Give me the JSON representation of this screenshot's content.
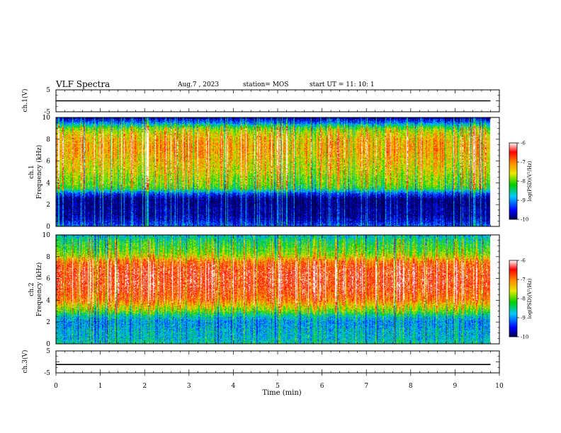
{
  "header": {
    "title": "VLF Spectra",
    "date": "Aug.7 , 2023",
    "station": "station= MOS",
    "start_ut": "start UT = 11: 10: 1"
  },
  "chart_data": [
    {
      "type": "line",
      "name": "ch1_voltage",
      "ylabel": "ch.1(V)",
      "yticks": [
        "5",
        "-5"
      ],
      "ylim": [
        -5,
        5
      ],
      "xlim": [
        0,
        10
      ],
      "trace_level": 0
    },
    {
      "type": "heatmap",
      "name": "ch1_spectrogram",
      "ylabel": "ch.1\nFrequency (kHz)",
      "ylabel_line1": "ch.1",
      "ylabel_line2": "Frequency (kHz)",
      "yticks": [
        "0",
        "2",
        "4",
        "6",
        "8",
        "10"
      ],
      "ylim": [
        0,
        10
      ],
      "xlim": [
        0,
        10
      ],
      "data_end_min": 9.8,
      "colorbar": {
        "label": "log(PSD)(V²/Hz)",
        "ticks": [
          "-6",
          "-7",
          "-8",
          "-9",
          "-10"
        ],
        "range": [
          -10,
          -6
        ]
      },
      "profile_khz": [
        0,
        0.5,
        1,
        1.5,
        2,
        2.5,
        3,
        3.5,
        4,
        4.5,
        5,
        5.5,
        6,
        6.5,
        7,
        7.5,
        8,
        8.5,
        9,
        9.5,
        10
      ],
      "profile_logpsd": [
        -9.2,
        -9.6,
        -9.8,
        -9.8,
        -9.9,
        -9.9,
        -9.3,
        -8.2,
        -7.9,
        -7.8,
        -7.6,
        -7.5,
        -7.4,
        -7.3,
        -7.2,
        -7.2,
        -7.3,
        -7.5,
        -7.9,
        -9.0,
        -9.8
      ]
    },
    {
      "type": "heatmap",
      "name": "ch2_spectrogram",
      "ylabel": "ch.2\nFrequency (kHz)",
      "ylabel_line1": "ch.2",
      "ylabel_line2": "Frequency (kHz)",
      "yticks": [
        "0",
        "2",
        "4",
        "6",
        "8",
        "10"
      ],
      "ylim": [
        0,
        10
      ],
      "xlim": [
        0,
        10
      ],
      "data_end_min": 9.8,
      "colorbar": {
        "label": "log(PSD)(V²/Hz)",
        "ticks": [
          "-6",
          "-7",
          "-8",
          "-9",
          "-10"
        ],
        "range": [
          -10,
          -6
        ]
      },
      "profile_khz": [
        0,
        0.5,
        1,
        1.5,
        2,
        2.5,
        3,
        3.5,
        4,
        4.5,
        5,
        5.5,
        6,
        6.5,
        7,
        7.5,
        8,
        8.5,
        9,
        9.5,
        10
      ],
      "profile_logpsd": [
        -8.6,
        -8.8,
        -8.8,
        -8.9,
        -9.0,
        -8.7,
        -8.0,
        -7.5,
        -7.0,
        -6.8,
        -6.7,
        -6.6,
        -6.6,
        -6.6,
        -6.7,
        -6.9,
        -7.6,
        -8.0,
        -8.2,
        -8.4,
        -8.8
      ]
    },
    {
      "type": "line",
      "name": "ch3_voltage",
      "ylabel": "ch.3(V)",
      "yticks": [
        "5",
        "-5"
      ],
      "ylim": [
        -5,
        5
      ],
      "xlim": [
        0,
        10
      ],
      "trace_level": -1.2,
      "xlabel": "Time (min)",
      "xticks": [
        "0",
        "1",
        "2",
        "3",
        "4",
        "5",
        "6",
        "7",
        "8",
        "9",
        "10"
      ]
    }
  ]
}
